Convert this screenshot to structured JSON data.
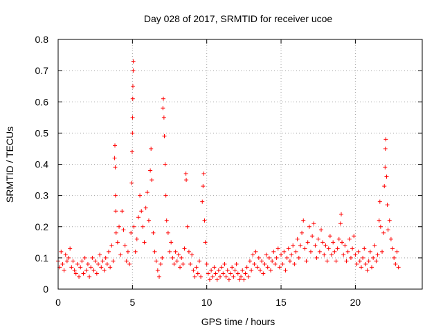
{
  "chart_data": {
    "type": "scatter",
    "title": "Day 028 of 2017, SRMTID for receiver ucoe",
    "xlabel": "GPS time / hours",
    "ylabel": "SRMTID / TECUs",
    "xlim": [
      0,
      24.5
    ],
    "ylim": [
      0,
      0.8
    ],
    "xticks": [
      0,
      5,
      10,
      15,
      20
    ],
    "xtick_labels": [
      "0",
      "5",
      "10",
      "15",
      "20"
    ],
    "yticks": [
      0,
      0.1,
      0.2,
      0.3,
      0.4,
      0.5,
      0.6,
      0.7,
      0.8
    ],
    "ytick_labels": [
      "0",
      "0.1",
      "0.2",
      "0.3",
      "0.4",
      "0.5",
      "0.6",
      "0.7",
      "0.8"
    ],
    "grid": true,
    "marker": "+",
    "series_color": "#ff0000",
    "series": [
      {
        "name": "SRMTID",
        "points": [
          [
            0.0,
            0.09
          ],
          [
            0.1,
            0.07
          ],
          [
            0.2,
            0.12
          ],
          [
            0.3,
            0.08
          ],
          [
            0.4,
            0.06
          ],
          [
            0.5,
            0.11
          ],
          [
            0.6,
            0.09
          ],
          [
            0.7,
            0.1
          ],
          [
            0.8,
            0.13
          ],
          [
            0.9,
            0.07
          ],
          [
            1.0,
            0.09
          ],
          [
            1.1,
            0.06
          ],
          [
            1.2,
            0.05
          ],
          [
            1.3,
            0.08
          ],
          [
            1.4,
            0.04
          ],
          [
            1.5,
            0.07
          ],
          [
            1.6,
            0.09
          ],
          [
            1.7,
            0.05
          ],
          [
            1.8,
            0.1
          ],
          [
            1.9,
            0.06
          ],
          [
            2.0,
            0.08
          ],
          [
            2.1,
            0.04
          ],
          [
            2.2,
            0.07
          ],
          [
            2.3,
            0.1
          ],
          [
            2.4,
            0.06
          ],
          [
            2.5,
            0.09
          ],
          [
            2.6,
            0.05
          ],
          [
            2.7,
            0.08
          ],
          [
            2.8,
            0.11
          ],
          [
            2.9,
            0.07
          ],
          [
            3.0,
            0.09
          ],
          [
            3.1,
            0.06
          ],
          [
            3.2,
            0.1
          ],
          [
            3.3,
            0.08
          ],
          [
            3.4,
            0.12
          ],
          [
            3.5,
            0.07
          ],
          [
            3.6,
            0.14
          ],
          [
            3.7,
            0.09
          ],
          [
            3.8,
            0.42
          ],
          [
            3.82,
            0.46
          ],
          [
            3.84,
            0.39
          ],
          [
            3.86,
            0.3
          ],
          [
            3.88,
            0.25
          ],
          [
            3.9,
            0.18
          ],
          [
            4.0,
            0.15
          ],
          [
            4.1,
            0.2
          ],
          [
            4.2,
            0.11
          ],
          [
            4.3,
            0.25
          ],
          [
            4.4,
            0.19
          ],
          [
            4.5,
            0.14
          ],
          [
            4.6,
            0.09
          ],
          [
            4.7,
            0.12
          ],
          [
            4.8,
            0.08
          ],
          [
            4.9,
            0.18
          ],
          [
            4.95,
            0.34
          ],
          [
            4.98,
            0.44
          ],
          [
            5.0,
            0.5
          ],
          [
            5.01,
            0.55
          ],
          [
            5.02,
            0.61
          ],
          [
            5.03,
            0.65
          ],
          [
            5.05,
            0.7
          ],
          [
            5.06,
            0.73
          ],
          [
            5.1,
            0.2
          ],
          [
            5.2,
            0.12
          ],
          [
            5.3,
            0.16
          ],
          [
            5.4,
            0.23
          ],
          [
            5.5,
            0.3
          ],
          [
            5.6,
            0.25
          ],
          [
            5.7,
            0.2
          ],
          [
            5.8,
            0.15
          ],
          [
            5.9,
            0.26
          ],
          [
            6.0,
            0.31
          ],
          [
            6.1,
            0.22
          ],
          [
            6.2,
            0.38
          ],
          [
            6.25,
            0.45
          ],
          [
            6.3,
            0.35
          ],
          [
            6.4,
            0.18
          ],
          [
            6.5,
            0.12
          ],
          [
            6.6,
            0.09
          ],
          [
            6.7,
            0.06
          ],
          [
            6.8,
            0.04
          ],
          [
            6.9,
            0.08
          ],
          [
            7.0,
            0.1
          ],
          [
            7.05,
            0.58
          ],
          [
            7.08,
            0.61
          ],
          [
            7.12,
            0.55
          ],
          [
            7.15,
            0.49
          ],
          [
            7.2,
            0.4
          ],
          [
            7.25,
            0.3
          ],
          [
            7.3,
            0.22
          ],
          [
            7.4,
            0.18
          ],
          [
            7.5,
            0.12
          ],
          [
            7.6,
            0.15
          ],
          [
            7.7,
            0.1
          ],
          [
            7.8,
            0.08
          ],
          [
            7.9,
            0.12
          ],
          [
            8.0,
            0.09
          ],
          [
            8.1,
            0.11
          ],
          [
            8.2,
            0.07
          ],
          [
            8.3,
            0.1
          ],
          [
            8.4,
            0.08
          ],
          [
            8.5,
            0.13
          ],
          [
            8.6,
            0.37
          ],
          [
            8.62,
            0.35
          ],
          [
            8.7,
            0.2
          ],
          [
            8.8,
            0.12
          ],
          [
            8.9,
            0.08
          ],
          [
            9.0,
            0.11
          ],
          [
            9.1,
            0.06
          ],
          [
            9.2,
            0.04
          ],
          [
            9.3,
            0.07
          ],
          [
            9.4,
            0.05
          ],
          [
            9.5,
            0.09
          ],
          [
            9.6,
            0.04
          ],
          [
            9.7,
            0.28
          ],
          [
            9.75,
            0.33
          ],
          [
            9.8,
            0.37
          ],
          [
            9.85,
            0.22
          ],
          [
            9.9,
            0.15
          ],
          [
            10.0,
            0.08
          ],
          [
            10.1,
            0.05
          ],
          [
            10.2,
            0.03
          ],
          [
            10.3,
            0.06
          ],
          [
            10.4,
            0.04
          ],
          [
            10.5,
            0.07
          ],
          [
            10.6,
            0.05
          ],
          [
            10.7,
            0.03
          ],
          [
            10.8,
            0.06
          ],
          [
            10.9,
            0.04
          ],
          [
            11.0,
            0.07
          ],
          [
            11.1,
            0.05
          ],
          [
            11.2,
            0.08
          ],
          [
            11.3,
            0.04
          ],
          [
            11.4,
            0.06
          ],
          [
            11.5,
            0.03
          ],
          [
            11.6,
            0.05
          ],
          [
            11.7,
            0.07
          ],
          [
            11.8,
            0.04
          ],
          [
            11.9,
            0.06
          ],
          [
            12.0,
            0.08
          ],
          [
            12.1,
            0.05
          ],
          [
            12.2,
            0.03
          ],
          [
            12.3,
            0.04
          ],
          [
            12.4,
            0.06
          ],
          [
            12.5,
            0.03
          ],
          [
            12.6,
            0.05
          ],
          [
            12.7,
            0.07
          ],
          [
            12.8,
            0.04
          ],
          [
            12.9,
            0.09
          ],
          [
            13.0,
            0.06
          ],
          [
            13.1,
            0.11
          ],
          [
            13.2,
            0.08
          ],
          [
            13.3,
            0.12
          ],
          [
            13.4,
            0.07
          ],
          [
            13.5,
            0.1
          ],
          [
            13.6,
            0.06
          ],
          [
            13.7,
            0.09
          ],
          [
            13.8,
            0.05
          ],
          [
            13.9,
            0.08
          ],
          [
            14.0,
            0.11
          ],
          [
            14.1,
            0.07
          ],
          [
            14.2,
            0.1
          ],
          [
            14.3,
            0.06
          ],
          [
            14.4,
            0.09
          ],
          [
            14.5,
            0.12
          ],
          [
            14.6,
            0.08
          ],
          [
            14.7,
            0.1
          ],
          [
            14.8,
            0.13
          ],
          [
            14.9,
            0.07
          ],
          [
            15.0,
            0.11
          ],
          [
            15.1,
            0.08
          ],
          [
            15.2,
            0.12
          ],
          [
            15.3,
            0.06
          ],
          [
            15.4,
            0.1
          ],
          [
            15.5,
            0.13
          ],
          [
            15.6,
            0.09
          ],
          [
            15.7,
            0.11
          ],
          [
            15.8,
            0.14
          ],
          [
            15.9,
            0.08
          ],
          [
            16.0,
            0.12
          ],
          [
            16.1,
            0.16
          ],
          [
            16.2,
            0.1
          ],
          [
            16.3,
            0.14
          ],
          [
            16.4,
            0.18
          ],
          [
            16.5,
            0.22
          ],
          [
            16.6,
            0.13
          ],
          [
            16.7,
            0.09
          ],
          [
            16.8,
            0.15
          ],
          [
            16.9,
            0.2
          ],
          [
            17.0,
            0.12
          ],
          [
            17.1,
            0.17
          ],
          [
            17.2,
            0.21
          ],
          [
            17.3,
            0.14
          ],
          [
            17.4,
            0.1
          ],
          [
            17.5,
            0.16
          ],
          [
            17.6,
            0.12
          ],
          [
            17.7,
            0.19
          ],
          [
            17.8,
            0.15
          ],
          [
            17.9,
            0.11
          ],
          [
            18.0,
            0.14
          ],
          [
            18.1,
            0.09
          ],
          [
            18.2,
            0.13
          ],
          [
            18.3,
            0.17
          ],
          [
            18.4,
            0.11
          ],
          [
            18.5,
            0.15
          ],
          [
            18.6,
            0.12
          ],
          [
            18.7,
            0.09
          ],
          [
            18.8,
            0.13
          ],
          [
            18.9,
            0.16
          ],
          [
            19.0,
            0.21
          ],
          [
            19.05,
            0.24
          ],
          [
            19.1,
            0.15
          ],
          [
            19.2,
            0.11
          ],
          [
            19.3,
            0.14
          ],
          [
            19.4,
            0.09
          ],
          [
            19.5,
            0.12
          ],
          [
            19.6,
            0.16
          ],
          [
            19.7,
            0.1
          ],
          [
            19.8,
            0.13
          ],
          [
            19.9,
            0.17
          ],
          [
            20.0,
            0.11
          ],
          [
            20.1,
            0.08
          ],
          [
            20.2,
            0.12
          ],
          [
            20.3,
            0.09
          ],
          [
            20.4,
            0.07
          ],
          [
            20.5,
            0.1
          ],
          [
            20.6,
            0.13
          ],
          [
            20.7,
            0.08
          ],
          [
            20.8,
            0.06
          ],
          [
            20.9,
            0.09
          ],
          [
            21.0,
            0.12
          ],
          [
            21.1,
            0.07
          ],
          [
            21.2,
            0.1
          ],
          [
            21.3,
            0.14
          ],
          [
            21.4,
            0.09
          ],
          [
            21.5,
            0.11
          ],
          [
            21.6,
            0.22
          ],
          [
            21.65,
            0.28
          ],
          [
            21.7,
            0.2
          ],
          [
            21.8,
            0.12
          ],
          [
            21.9,
            0.18
          ],
          [
            21.95,
            0.33
          ],
          [
            22.0,
            0.39
          ],
          [
            22.02,
            0.45
          ],
          [
            22.05,
            0.48
          ],
          [
            22.1,
            0.36
          ],
          [
            22.15,
            0.27
          ],
          [
            22.2,
            0.19
          ],
          [
            22.3,
            0.22
          ],
          [
            22.4,
            0.16
          ],
          [
            22.5,
            0.13
          ],
          [
            22.6,
            0.1
          ],
          [
            22.7,
            0.08
          ],
          [
            22.8,
            0.12
          ],
          [
            22.9,
            0.07
          ]
        ]
      }
    ]
  }
}
